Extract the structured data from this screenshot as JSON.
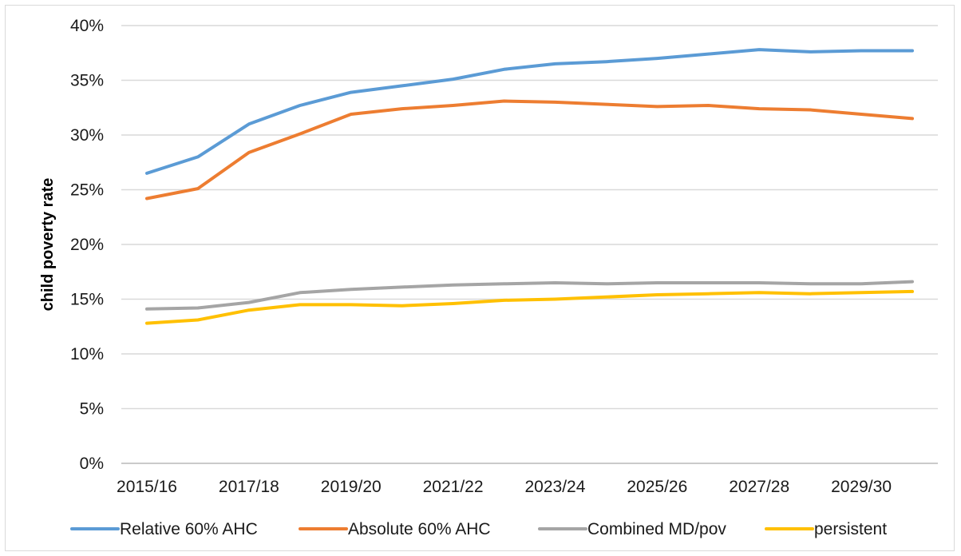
{
  "chart_data": {
    "type": "line",
    "title": "",
    "ylabel": "child poverty rate",
    "xlabel": "",
    "ylim": [
      0,
      0.4
    ],
    "y_tick_labels": [
      "0%",
      "5%",
      "10%",
      "15%",
      "20%",
      "25%",
      "30%",
      "35%",
      "40%"
    ],
    "x": [
      "2015/16",
      "2016/17",
      "2017/18",
      "2018/19",
      "2019/20",
      "2020/21",
      "2021/22",
      "2022/23",
      "2023/24",
      "2024/25",
      "2025/26",
      "2026/27",
      "2027/28",
      "2028/29",
      "2029/30",
      "2030/31"
    ],
    "x_tick_labels": [
      "2015/16",
      "2017/18",
      "2019/20",
      "2021/22",
      "2023/24",
      "2025/26",
      "2027/28",
      "2029/30"
    ],
    "grid": true,
    "legend_position": "bottom",
    "series": [
      {
        "name": "Relative 60% AHC",
        "color": "#5b9bd5",
        "values": [
          0.265,
          0.28,
          0.31,
          0.327,
          0.339,
          0.345,
          0.351,
          0.36,
          0.365,
          0.367,
          0.37,
          0.374,
          0.378,
          0.376,
          0.377,
          0.377
        ]
      },
      {
        "name": "Absolute 60% AHC",
        "color": "#ed7d31",
        "values": [
          0.242,
          0.251,
          0.284,
          0.301,
          0.319,
          0.324,
          0.327,
          0.331,
          0.33,
          0.328,
          0.326,
          0.327,
          0.324,
          0.323,
          0.319,
          0.315
        ]
      },
      {
        "name": "Combined MD/pov",
        "color": "#a5a5a5",
        "values": [
          0.141,
          0.142,
          0.147,
          0.156,
          0.159,
          0.161,
          0.163,
          0.164,
          0.165,
          0.164,
          0.165,
          0.165,
          0.165,
          0.164,
          0.164,
          0.166
        ]
      },
      {
        "name": "persistent",
        "color": "#ffc000",
        "values": [
          0.128,
          0.131,
          0.14,
          0.145,
          0.145,
          0.144,
          0.146,
          0.149,
          0.15,
          0.152,
          0.154,
          0.155,
          0.156,
          0.155,
          0.156,
          0.157
        ]
      }
    ]
  }
}
